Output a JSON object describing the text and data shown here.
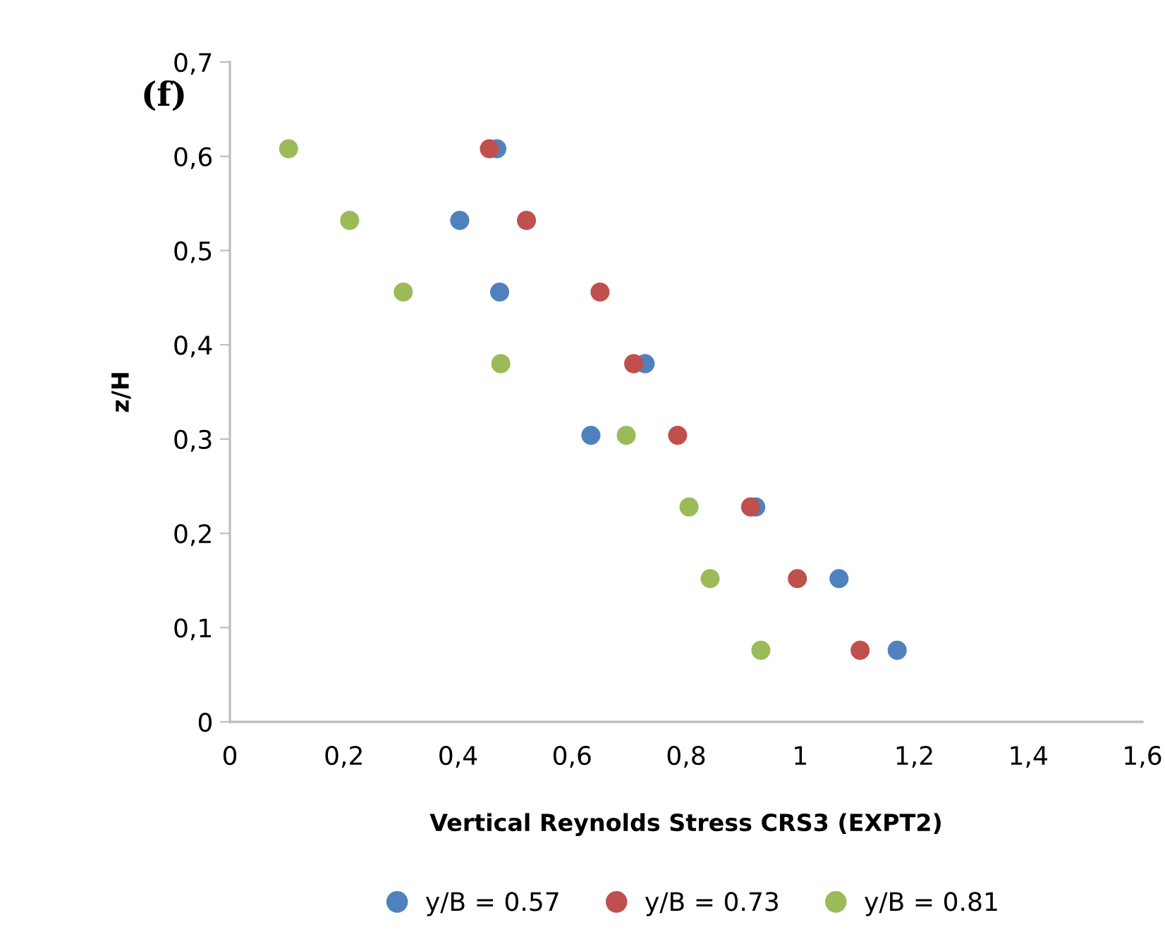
{
  "chart_data": {
    "type": "scatter",
    "xlabel": "Vertical Reynolds Stress CRS3 (EXPT2)",
    "ylabel": "z/H",
    "annotations": [
      "(f)"
    ],
    "series": [
      {
        "name": "y/B = 0.57",
        "color": "#4f81bd",
        "x": [
          1.17,
          1.068,
          0.922,
          0.633,
          0.728,
          0.473,
          0.403,
          0.468
        ],
        "values": [
          0.076,
          0.152,
          0.228,
          0.304,
          0.38,
          0.456,
          0.532,
          0.608
        ]
      },
      {
        "name": "y/B = 0.73",
        "color": "#c0504d",
        "x": [
          1.105,
          0.995,
          0.913,
          0.785,
          0.708,
          0.649,
          0.52,
          0.455
        ],
        "values": [
          0.076,
          0.152,
          0.228,
          0.304,
          0.38,
          0.456,
          0.532,
          0.608
        ]
      },
      {
        "name": "y/B = 0.81",
        "color": "#9bbb59",
        "x": [
          0.931,
          0.842,
          0.805,
          0.695,
          0.475,
          0.304,
          0.21,
          0.103
        ],
        "values": [
          0.076,
          0.152,
          0.228,
          0.304,
          0.38,
          0.456,
          0.532,
          0.608
        ]
      }
    ],
    "xlim": [
      0,
      1.6
    ],
    "xticks": [
      {
        "value": 0,
        "label": "0"
      },
      {
        "value": 0.2,
        "label": "0,2"
      },
      {
        "value": 0.4,
        "label": "0,4"
      },
      {
        "value": 0.6,
        "label": "0,6"
      },
      {
        "value": 0.8,
        "label": "0,8"
      },
      {
        "value": 1,
        "label": "1"
      },
      {
        "value": 1.2,
        "label": "1,2"
      },
      {
        "value": 1.4,
        "label": "1,4"
      },
      {
        "value": 1.6,
        "label": "1,6"
      }
    ],
    "ylim": [
      0,
      0.7
    ],
    "yticks": [
      {
        "value": 0,
        "label": "0"
      },
      {
        "value": 0.1,
        "label": "0,1"
      },
      {
        "value": 0.2,
        "label": "0,2"
      },
      {
        "value": 0.3,
        "label": "0,3"
      },
      {
        "value": 0.4,
        "label": "0,4"
      },
      {
        "value": 0.5,
        "label": "0,5"
      },
      {
        "value": 0.6,
        "label": "0,6"
      },
      {
        "value": 0.7,
        "label": "0,7"
      }
    ],
    "grid": false,
    "legend": "bottom",
    "marker": "circle"
  }
}
